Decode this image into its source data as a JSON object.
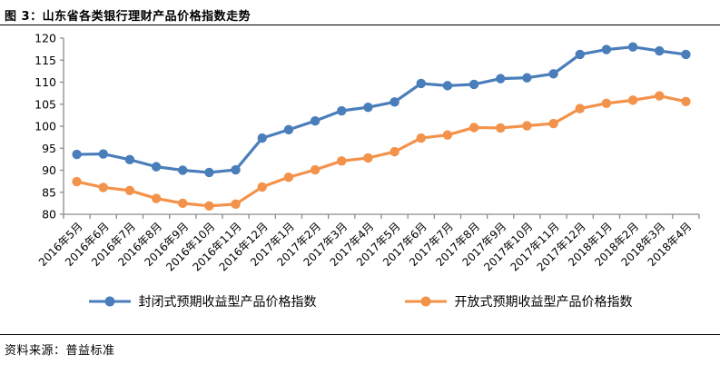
{
  "page": {
    "title": "图 3：山东省各类银行理财产品价格指数走势",
    "source": "资料来源：普益标准"
  },
  "chart_data": {
    "type": "line",
    "title": "山东省各类银行理财产品价格指数走势",
    "xlabel": "",
    "ylabel": "",
    "ylim": [
      80,
      120
    ],
    "ystep": 5,
    "grid": false,
    "legend_position": "bottom",
    "axis_color": "#8C8C8C",
    "categories": [
      "2016年5月",
      "2016年6月",
      "2016年7月",
      "2016年8月",
      "2016年9月",
      "2016年10月",
      "2016年11月",
      "2016年12月",
      "2017年1月",
      "2017年2月",
      "2017年3月",
      "2017年4月",
      "2017年5月",
      "2017年6月",
      "2017年7月",
      "2017年8月",
      "2017年9月",
      "2017年10月",
      "2017年11月",
      "2017年12月",
      "2018年1月",
      "2018年2月",
      "2018年3月",
      "2018年4月"
    ],
    "series": [
      {
        "name": "封闭式预期收益型产品价格指数",
        "color": "#4A7EBB",
        "values": [
          93.6,
          93.7,
          92.4,
          90.8,
          90.0,
          89.5,
          90.1,
          97.3,
          99.2,
          101.2,
          103.5,
          104.3,
          105.5,
          109.7,
          109.2,
          109.5,
          110.8,
          111.0,
          111.9,
          116.3,
          117.4,
          118.0,
          117.1,
          116.3
        ]
      },
      {
        "name": "开放式预期收益型产品价格指数",
        "color": "#F3924A",
        "values": [
          87.4,
          86.1,
          85.4,
          83.6,
          82.5,
          81.9,
          82.3,
          86.2,
          88.4,
          90.1,
          92.1,
          92.8,
          94.2,
          97.3,
          98.0,
          99.7,
          99.6,
          100.1,
          100.6,
          104.0,
          105.2,
          105.9,
          106.9,
          105.6
        ]
      }
    ]
  }
}
